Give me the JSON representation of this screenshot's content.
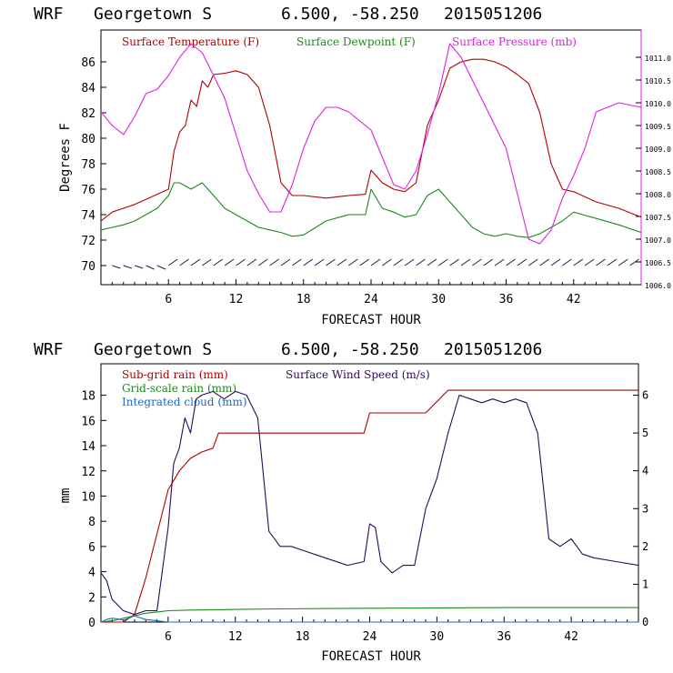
{
  "top_panel": {
    "title": {
      "model": "WRF",
      "station": "Georgetown S",
      "coords": "6.500, -58.250",
      "run": "2015051206"
    },
    "ylabel": "Degrees F",
    "xlabel": "FORECAST HOUR",
    "x_ticks": [
      "6",
      "12",
      "18",
      "24",
      "30",
      "36",
      "42"
    ],
    "y_ticks": [
      "70",
      "72",
      "74",
      "76",
      "78",
      "80",
      "82",
      "84",
      "86"
    ],
    "right_ticks": [
      "1006.0",
      "1006.5",
      "1007.0",
      "1007.5",
      "1008.0",
      "1008.5",
      "1009.0",
      "1009.5",
      "1010.0",
      "1010.5",
      "1011.0"
    ],
    "legend": [
      {
        "label": "Surface Temperature (F)",
        "color": "#b00000"
      },
      {
        "label": "Surface Dewpoint (F)",
        "color": "#1a8a1a"
      },
      {
        "label": "Surface Pressure (mb)",
        "color": "#e020e0"
      }
    ],
    "wind_barbs": "dark navy barbs along y=70"
  },
  "bottom_panel": {
    "title": {
      "model": "WRF",
      "station": "Georgetown S",
      "coords": "6.500, -58.250",
      "run": "2015051206"
    },
    "ylabel": "mm",
    "xlabel": "FORECAST HOUR",
    "x_ticks": [
      "6",
      "12",
      "18",
      "24",
      "30",
      "36",
      "42"
    ],
    "y_ticks": [
      "0",
      "2",
      "4",
      "6",
      "8",
      "10",
      "12",
      "14",
      "16",
      "18"
    ],
    "right_ticks": [
      "0",
      "1",
      "2",
      "3",
      "4",
      "5",
      "6"
    ],
    "legend": [
      {
        "label": "Sub-grid rain (mm)",
        "color": "#b00000"
      },
      {
        "label": "Surface Wind Speed (m/s)",
        "color": "#2a0a5a"
      },
      {
        "label": "Grid-scale rain (mm)",
        "color": "#1a8a1a"
      },
      {
        "label": "Integrated cloud (mm)",
        "color": "#1a6ad0"
      }
    ]
  },
  "chart_data": [
    {
      "type": "line",
      "xlabel": "FORECAST HOUR",
      "ylabel": "Degrees F",
      "xlim": [
        0,
        48
      ],
      "ylim": [
        68.5,
        88.5
      ],
      "y2lim": [
        1006.0,
        1011.6
      ],
      "series": [
        {
          "name": "Surface Temperature (F)",
          "axis": "left",
          "color": "#b00000",
          "x": [
            0,
            1,
            2,
            3,
            4,
            5,
            6,
            6.5,
            7,
            7.5,
            8,
            8.5,
            9,
            9.5,
            10,
            11,
            12,
            13,
            14,
            15,
            16,
            17,
            18,
            20,
            22,
            23.5,
            24,
            25,
            26,
            27,
            28,
            29,
            30,
            31,
            32,
            33,
            34,
            35,
            36,
            37,
            38,
            39,
            40,
            41,
            42,
            44,
            46,
            48
          ],
          "y": [
            73.5,
            74.2,
            74.5,
            74.8,
            75.2,
            75.6,
            76.0,
            79.0,
            80.5,
            81.0,
            83.0,
            82.5,
            84.5,
            84.0,
            85.0,
            85.1,
            85.3,
            85.0,
            84.0,
            81.0,
            76.5,
            75.5,
            75.5,
            75.3,
            75.5,
            75.6,
            77.5,
            76.5,
            76.0,
            75.8,
            76.5,
            81.0,
            83.0,
            85.5,
            86.0,
            86.2,
            86.2,
            86.0,
            85.6,
            85.0,
            84.3,
            82.0,
            78.0,
            76.0,
            75.8,
            75.0,
            74.5,
            73.8
          ]
        },
        {
          "name": "Surface Dewpoint (F)",
          "axis": "left",
          "color": "#1a8a1a",
          "x": [
            0,
            1,
            2,
            3,
            4,
            5,
            6,
            6.5,
            7,
            8,
            9,
            10,
            11,
            12,
            13,
            14,
            15,
            16,
            17,
            18,
            20,
            22,
            23.5,
            24,
            25,
            26,
            27,
            28,
            29,
            30,
            31,
            32,
            33,
            34,
            35,
            36,
            37,
            38,
            39,
            40,
            41,
            42,
            44,
            46,
            48
          ],
          "y": [
            72.8,
            73.0,
            73.2,
            73.5,
            74.0,
            74.5,
            75.5,
            76.5,
            76.5,
            76.0,
            76.5,
            75.5,
            74.5,
            74.0,
            73.5,
            73.0,
            72.8,
            72.6,
            72.3,
            72.4,
            73.5,
            74.0,
            74.0,
            76.0,
            74.5,
            74.2,
            73.8,
            74.0,
            75.5,
            76.0,
            75.0,
            74.0,
            73.0,
            72.5,
            72.3,
            72.5,
            72.3,
            72.2,
            72.5,
            73.0,
            73.5,
            74.2,
            73.7,
            73.2,
            72.6
          ]
        },
        {
          "name": "Surface Pressure (mb)",
          "axis": "right",
          "color": "#e020e0",
          "x": [
            0,
            1,
            2,
            3,
            4,
            5,
            6,
            7,
            8,
            8.5,
            9,
            10,
            11,
            12,
            13,
            14,
            15,
            16,
            17,
            18,
            19,
            20,
            21,
            22,
            23,
            24,
            25,
            26,
            27,
            28,
            29,
            30,
            31,
            32,
            33,
            34,
            35,
            36,
            37,
            38,
            39,
            40,
            41,
            42,
            43,
            44,
            46,
            48
          ],
          "y": [
            1009.8,
            1009.5,
            1009.3,
            1009.7,
            1010.2,
            1010.3,
            1010.6,
            1011.0,
            1011.3,
            1011.2,
            1011.1,
            1010.6,
            1010.1,
            1009.3,
            1008.5,
            1008.0,
            1007.6,
            1007.6,
            1008.2,
            1009.0,
            1009.6,
            1009.9,
            1009.9,
            1009.8,
            1009.6,
            1009.4,
            1008.8,
            1008.2,
            1008.1,
            1008.5,
            1009.3,
            1010.2,
            1011.3,
            1011.0,
            1010.5,
            1010.0,
            1009.5,
            1009.0,
            1008.0,
            1007.0,
            1006.9,
            1007.2,
            1007.9,
            1008.4,
            1009.0,
            1009.8,
            1010.0,
            1009.9
          ]
        }
      ]
    },
    {
      "type": "line",
      "xlabel": "FORECAST HOUR",
      "ylabel": "mm",
      "xlim": [
        0,
        48
      ],
      "ylim": [
        0,
        20.5
      ],
      "y2lim": [
        0,
        6.83
      ],
      "series": [
        {
          "name": "Sub-grid rain (mm)",
          "axis": "left",
          "color": "#b00000",
          "x": [
            0,
            2,
            3,
            4,
            5,
            6,
            7,
            8,
            9,
            10,
            10.5,
            23.5,
            24,
            29,
            30,
            31,
            48
          ],
          "y": [
            0,
            0,
            0.6,
            3.5,
            7,
            10.5,
            12,
            13,
            13.5,
            13.8,
            15.0,
            15.0,
            16.6,
            16.6,
            17.5,
            18.4,
            18.4
          ]
        },
        {
          "name": "Grid-scale rain (mm)",
          "axis": "left",
          "color": "#1a8a1a",
          "x": [
            0,
            1,
            2,
            3,
            4,
            5,
            6,
            8,
            12,
            16,
            24,
            36,
            48
          ],
          "y": [
            0,
            0.1,
            0.3,
            0.5,
            0.7,
            0.8,
            0.9,
            0.95,
            1.0,
            1.05,
            1.1,
            1.15,
            1.15
          ]
        },
        {
          "name": "Integrated cloud (mm)",
          "axis": "left",
          "color": "#1a6ad0",
          "x": [
            0,
            0.5,
            1,
            1.5,
            2,
            2.5,
            3,
            3.5,
            4,
            5,
            6,
            48
          ],
          "y": [
            0,
            0.2,
            0.3,
            0.25,
            0.15,
            0.3,
            0.5,
            0.35,
            0.2,
            0.1,
            0,
            0
          ]
        },
        {
          "name": "Surface Wind Speed (m/s)",
          "axis": "right",
          "color": "#2a0a5a",
          "x": [
            0,
            0.5,
            1,
            2,
            3,
            4,
            5,
            6,
            6.5,
            7,
            7.5,
            8,
            8.5,
            9,
            10,
            11,
            12,
            13,
            14,
            15,
            16,
            17,
            18,
            20,
            22,
            23.5,
            24,
            24.5,
            25,
            26,
            27,
            28,
            29,
            30,
            31,
            32,
            33,
            34,
            35,
            36,
            37,
            38,
            39,
            40,
            41,
            42,
            43,
            44,
            46,
            48
          ],
          "y": [
            1.3,
            1.1,
            0.6,
            0.3,
            0.2,
            0.3,
            0.3,
            2.5,
            4.2,
            4.6,
            5.4,
            5.0,
            5.9,
            6.0,
            6.1,
            5.9,
            6.1,
            6.0,
            5.4,
            2.4,
            2.0,
            2.0,
            1.9,
            1.7,
            1.5,
            1.6,
            2.6,
            2.5,
            1.6,
            1.3,
            1.5,
            1.5,
            3.0,
            3.8,
            5.0,
            6.0,
            5.9,
            5.8,
            5.9,
            5.8,
            5.9,
            5.8,
            5.0,
            2.2,
            2.0,
            2.2,
            1.8,
            1.7,
            1.6,
            1.5
          ]
        }
      ]
    }
  ]
}
